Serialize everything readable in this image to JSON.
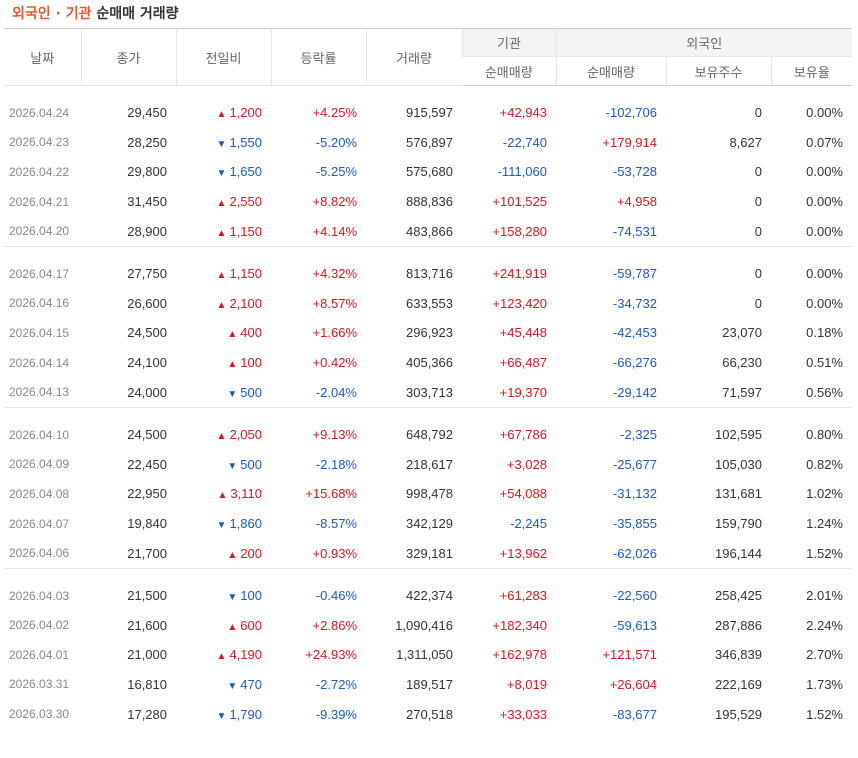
{
  "title": {
    "part1": "외국인 · 기관",
    "part2": "순매매 거래량"
  },
  "headers": {
    "date": "날짜",
    "close": "종가",
    "change": "전일비",
    "rate": "등락률",
    "volume": "거래량",
    "inst_group": "기관",
    "inst_net": "순매매량",
    "foreign_group": "외국인",
    "foreign_net": "순매매량",
    "foreign_hold": "보유주수",
    "foreign_ratio": "보유율"
  },
  "colors": {
    "up": "#e2141b",
    "down": "#1d59c7",
    "title_accent": "#e8582a"
  },
  "groups": [
    [
      {
        "date": "2026.04.24",
        "close": "29,450",
        "dir": "up",
        "change": "1,200",
        "rate": "+4.25%",
        "volume": "915,597",
        "inst": "+42,943",
        "foreign": "-102,706",
        "hold": "0",
        "ratio": "0.00%"
      },
      {
        "date": "2026.04.23",
        "close": "28,250",
        "dir": "down",
        "change": "1,550",
        "rate": "-5.20%",
        "volume": "576,897",
        "inst": "-22,740",
        "foreign": "+179,914",
        "hold": "8,627",
        "ratio": "0.07%"
      },
      {
        "date": "2026.04.22",
        "close": "29,800",
        "dir": "down",
        "change": "1,650",
        "rate": "-5.25%",
        "volume": "575,680",
        "inst": "-111,060",
        "foreign": "-53,728",
        "hold": "0",
        "ratio": "0.00%"
      },
      {
        "date": "2026.04.21",
        "close": "31,450",
        "dir": "up",
        "change": "2,550",
        "rate": "+8.82%",
        "volume": "888,836",
        "inst": "+101,525",
        "foreign": "+4,958",
        "hold": "0",
        "ratio": "0.00%"
      },
      {
        "date": "2026.04.20",
        "close": "28,900",
        "dir": "up",
        "change": "1,150",
        "rate": "+4.14%",
        "volume": "483,866",
        "inst": "+158,280",
        "foreign": "-74,531",
        "hold": "0",
        "ratio": "0.00%"
      }
    ],
    [
      {
        "date": "2026.04.17",
        "close": "27,750",
        "dir": "up",
        "change": "1,150",
        "rate": "+4.32%",
        "volume": "813,716",
        "inst": "+241,919",
        "foreign": "-59,787",
        "hold": "0",
        "ratio": "0.00%"
      },
      {
        "date": "2026.04.16",
        "close": "26,600",
        "dir": "up",
        "change": "2,100",
        "rate": "+8.57%",
        "volume": "633,553",
        "inst": "+123,420",
        "foreign": "-34,732",
        "hold": "0",
        "ratio": "0.00%"
      },
      {
        "date": "2026.04.15",
        "close": "24,500",
        "dir": "up",
        "change": "400",
        "rate": "+1.66%",
        "volume": "296,923",
        "inst": "+45,448",
        "foreign": "-42,453",
        "hold": "23,070",
        "ratio": "0.18%"
      },
      {
        "date": "2026.04.14",
        "close": "24,100",
        "dir": "up",
        "change": "100",
        "rate": "+0.42%",
        "volume": "405,366",
        "inst": "+66,487",
        "foreign": "-66,276",
        "hold": "66,230",
        "ratio": "0.51%"
      },
      {
        "date": "2026.04.13",
        "close": "24,000",
        "dir": "down",
        "change": "500",
        "rate": "-2.04%",
        "volume": "303,713",
        "inst": "+19,370",
        "foreign": "-29,142",
        "hold": "71,597",
        "ratio": "0.56%"
      }
    ],
    [
      {
        "date": "2026.04.10",
        "close": "24,500",
        "dir": "up",
        "change": "2,050",
        "rate": "+9.13%",
        "volume": "648,792",
        "inst": "+67,786",
        "foreign": "-2,325",
        "hold": "102,595",
        "ratio": "0.80%"
      },
      {
        "date": "2026.04.09",
        "close": "22,450",
        "dir": "down",
        "change": "500",
        "rate": "-2.18%",
        "volume": "218,617",
        "inst": "+3,028",
        "foreign": "-25,677",
        "hold": "105,030",
        "ratio": "0.82%"
      },
      {
        "date": "2026.04.08",
        "close": "22,950",
        "dir": "up",
        "change": "3,110",
        "rate": "+15.68%",
        "volume": "998,478",
        "inst": "+54,088",
        "foreign": "-31,132",
        "hold": "131,681",
        "ratio": "1.02%"
      },
      {
        "date": "2026.04.07",
        "close": "19,840",
        "dir": "down",
        "change": "1,860",
        "rate": "-8.57%",
        "volume": "342,129",
        "inst": "-2,245",
        "foreign": "-35,855",
        "hold": "159,790",
        "ratio": "1.24%"
      },
      {
        "date": "2026.04.06",
        "close": "21,700",
        "dir": "up",
        "change": "200",
        "rate": "+0.93%",
        "volume": "329,181",
        "inst": "+13,962",
        "foreign": "-62,026",
        "hold": "196,144",
        "ratio": "1.52%"
      }
    ],
    [
      {
        "date": "2026.04.03",
        "close": "21,500",
        "dir": "down",
        "change": "100",
        "rate": "-0.46%",
        "volume": "422,374",
        "inst": "+61,283",
        "foreign": "-22,560",
        "hold": "258,425",
        "ratio": "2.01%"
      },
      {
        "date": "2026.04.02",
        "close": "21,600",
        "dir": "up",
        "change": "600",
        "rate": "+2.86%",
        "volume": "1,090,416",
        "inst": "+182,340",
        "foreign": "-59,613",
        "hold": "287,886",
        "ratio": "2.24%"
      },
      {
        "date": "2026.04.01",
        "close": "21,000",
        "dir": "up",
        "change": "4,190",
        "rate": "+24.93%",
        "volume": "1,311,050",
        "inst": "+162,978",
        "foreign": "+121,571",
        "hold": "346,839",
        "ratio": "2.70%"
      },
      {
        "date": "2026.03.31",
        "close": "16,810",
        "dir": "down",
        "change": "470",
        "rate": "-2.72%",
        "volume": "189,517",
        "inst": "+8,019",
        "foreign": "+26,604",
        "hold": "222,169",
        "ratio": "1.73%"
      },
      {
        "date": "2026.03.30",
        "close": "17,280",
        "dir": "down",
        "change": "1,790",
        "rate": "-9.39%",
        "volume": "270,518",
        "inst": "+33,033",
        "foreign": "-83,677",
        "hold": "195,529",
        "ratio": "1.52%"
      }
    ]
  ]
}
